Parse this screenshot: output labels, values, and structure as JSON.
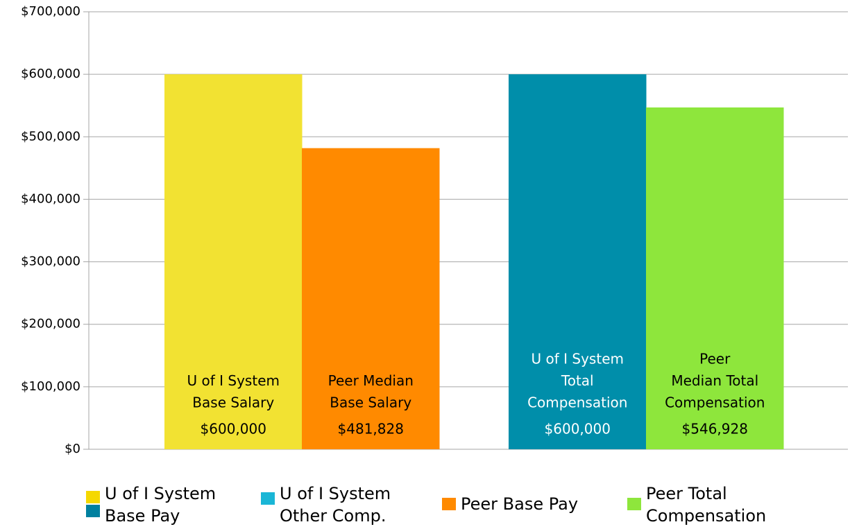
{
  "chart_data": {
    "type": "bar",
    "bars": [
      {
        "label": [
          "U of I System",
          "Base Salary"
        ],
        "value": 600000,
        "value_label": "$600,000",
        "color": "#f2e232",
        "text_color": "#000000"
      },
      {
        "label": [
          "Peer Median",
          "Base Salary"
        ],
        "value": 481828,
        "value_label": "$481,828",
        "color": "#ff8a00",
        "text_color": "#000000"
      },
      {
        "label": [
          "U of I System",
          "Total",
          "Compensation"
        ],
        "value": 600000,
        "value_label": "$600,000",
        "color": "#008eaa",
        "text_color": "#ffffff"
      },
      {
        "label": [
          "Peer",
          "Median Total",
          "Compensation"
        ],
        "value": 546928,
        "value_label": "$546,928",
        "color": "#8ee63c",
        "text_color": "#000000"
      }
    ],
    "ylim": [
      0,
      700000
    ],
    "yticks": [
      {
        "value": 0,
        "label": "$0"
      },
      {
        "value": 100000,
        "label": "$100,000"
      },
      {
        "value": 200000,
        "label": "$200,000"
      },
      {
        "value": 300000,
        "label": "$300,000"
      },
      {
        "value": 400000,
        "label": "$400,000"
      },
      {
        "value": 500000,
        "label": "$500,000"
      },
      {
        "value": 600000,
        "label": "$600,000"
      },
      {
        "value": 700000,
        "label": "$700,000"
      }
    ],
    "grid": true,
    "legend": [
      {
        "name": [
          "U of I System",
          "Base Pay"
        ],
        "colors": [
          "#f5d800",
          "#00809f"
        ]
      },
      {
        "name": [
          "U of I System",
          "Other Comp."
        ],
        "colors": [
          "#1ab6d6"
        ]
      },
      {
        "name": [
          "Peer Base Pay"
        ],
        "colors": [
          "#ff8a00"
        ]
      },
      {
        "name": [
          "Peer Total",
          "Compensation"
        ],
        "colors": [
          "#8ee63c"
        ]
      }
    ]
  }
}
